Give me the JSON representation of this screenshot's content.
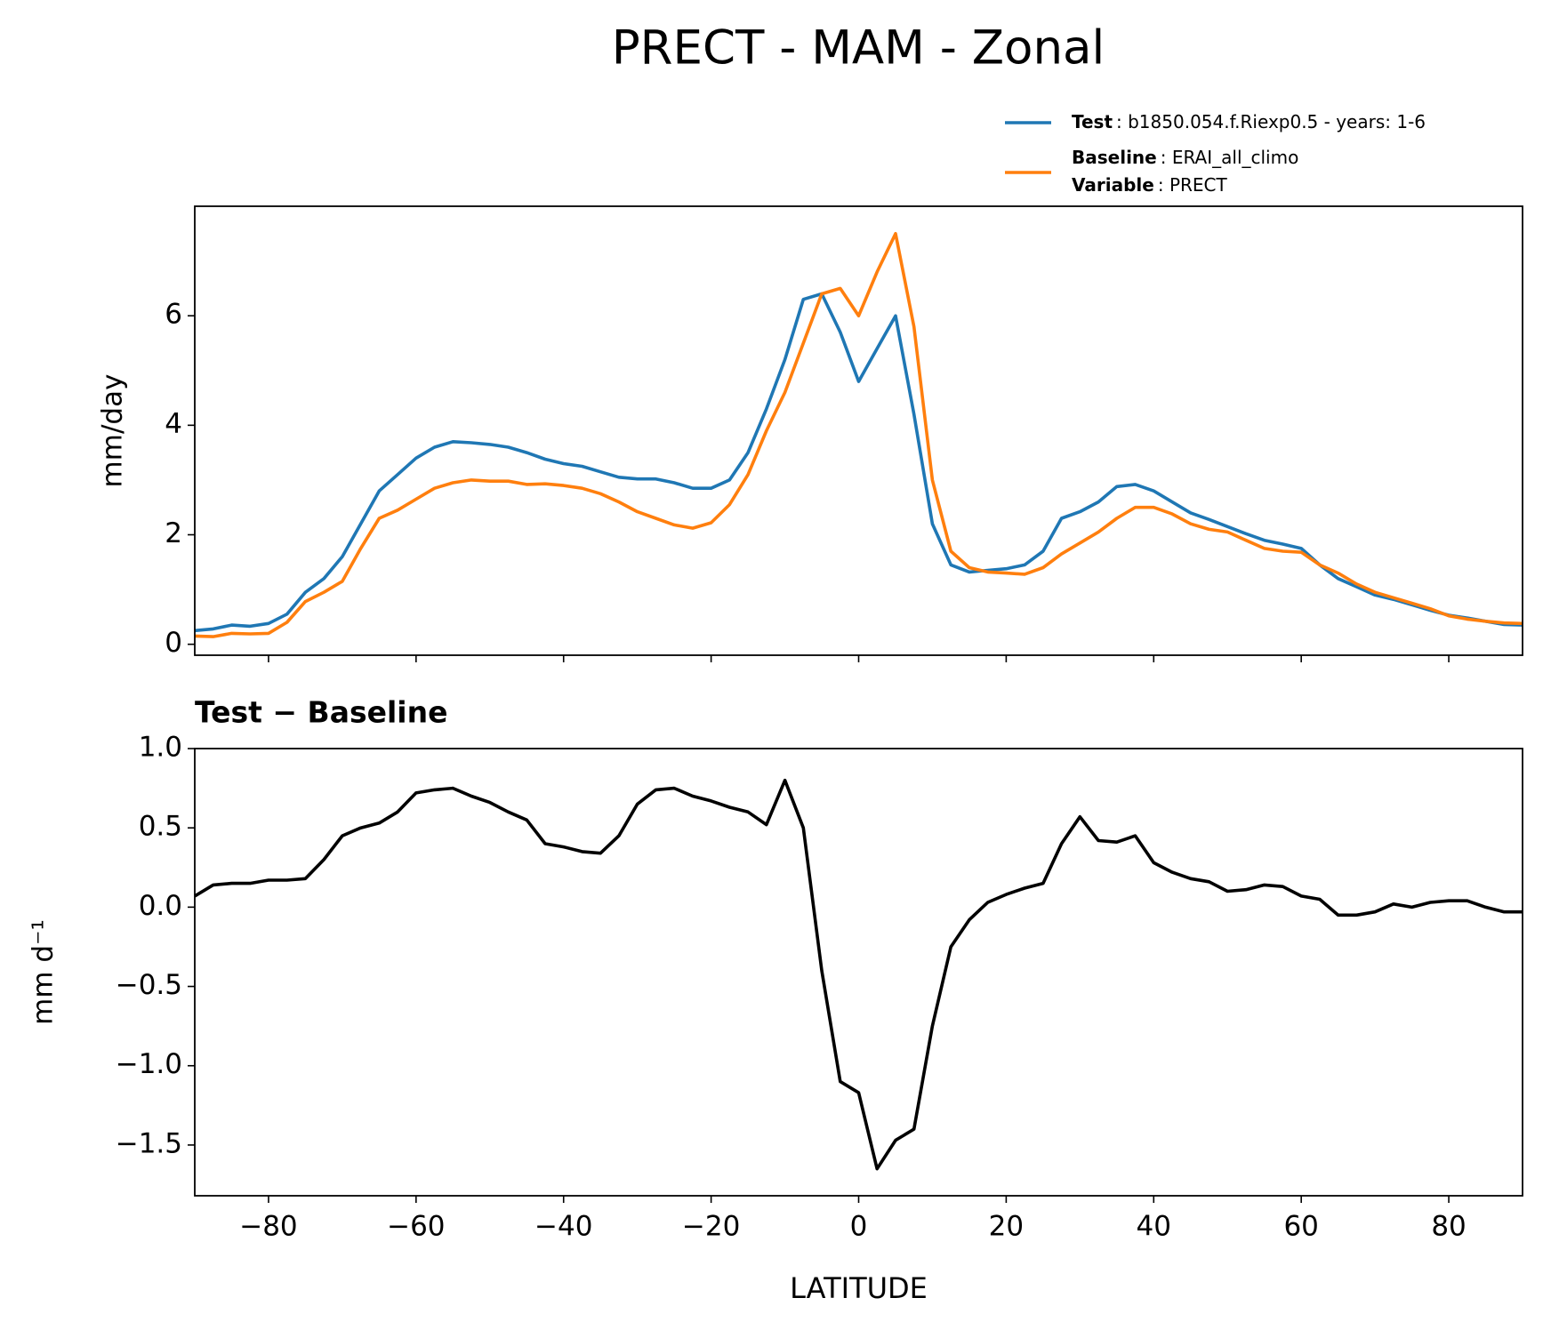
{
  "title": "PRECT - MAM - Zonal",
  "chart_data": [
    {
      "type": "line",
      "ylabel": "mm/day",
      "x": [
        -90,
        -87.5,
        -85,
        -82.5,
        -80,
        -77.5,
        -75,
        -72.5,
        -70,
        -67.5,
        -65,
        -62.5,
        -60,
        -57.5,
        -55,
        -52.5,
        -50,
        -47.5,
        -45,
        -42.5,
        -40,
        -37.5,
        -35,
        -32.5,
        -30,
        -27.5,
        -25,
        -22.5,
        -20,
        -17.5,
        -15,
        -12.5,
        -10,
        -7.5,
        -5,
        -2.5,
        0,
        2.5,
        5,
        7.5,
        10,
        12.5,
        15,
        17.5,
        20,
        22.5,
        25,
        27.5,
        30,
        32.5,
        35,
        37.5,
        40,
        42.5,
        45,
        47.5,
        50,
        52.5,
        55,
        57.5,
        60,
        62.5,
        65,
        67.5,
        70,
        72.5,
        75,
        77.5,
        80,
        82.5,
        85,
        87.5,
        90
      ],
      "series": [
        {
          "name": "Test",
          "label": ": b1850.054.f.Riexp0.5 - years: 1-6",
          "color": "#1f77b4",
          "values": [
            0.25,
            0.28,
            0.35,
            0.33,
            0.38,
            0.55,
            0.95,
            1.2,
            1.6,
            2.2,
            2.8,
            3.1,
            3.4,
            3.6,
            3.7,
            3.68,
            3.65,
            3.6,
            3.5,
            3.38,
            3.3,
            3.25,
            3.15,
            3.05,
            3.02,
            3.02,
            2.95,
            2.85,
            2.85,
            3.0,
            3.5,
            4.3,
            5.2,
            6.3,
            6.4,
            5.7,
            4.8,
            5.4,
            6.0,
            4.2,
            2.2,
            1.45,
            1.32,
            1.35,
            1.38,
            1.45,
            1.7,
            2.3,
            2.42,
            2.6,
            2.88,
            2.92,
            2.8,
            2.6,
            2.4,
            2.28,
            2.15,
            2.02,
            1.9,
            1.83,
            1.75,
            1.45,
            1.2,
            1.05,
            0.9,
            0.82,
            0.72,
            0.62,
            0.53,
            0.48,
            0.42,
            0.36,
            0.35
          ]
        },
        {
          "name": "Baseline",
          "label": ": ERAI_all_climo",
          "color": "#ff7f0e",
          "values": [
            0.15,
            0.14,
            0.2,
            0.19,
            0.2,
            0.4,
            0.78,
            0.95,
            1.15,
            1.75,
            2.3,
            2.45,
            2.65,
            2.85,
            2.95,
            3.0,
            2.98,
            2.98,
            2.92,
            2.93,
            2.9,
            2.85,
            2.75,
            2.6,
            2.42,
            2.3,
            2.18,
            2.12,
            2.22,
            2.55,
            3.1,
            3.9,
            4.6,
            5.5,
            6.4,
            6.5,
            6.0,
            6.8,
            7.5,
            5.8,
            3.0,
            1.7,
            1.4,
            1.32,
            1.3,
            1.28,
            1.4,
            1.65,
            1.85,
            2.05,
            2.3,
            2.5,
            2.5,
            2.38,
            2.2,
            2.1,
            2.05,
            1.9,
            1.75,
            1.7,
            1.68,
            1.45,
            1.3,
            1.1,
            0.95,
            0.85,
            0.75,
            0.65,
            0.52,
            0.46,
            0.42,
            0.39,
            0.38
          ]
        }
      ],
      "legend_extra": {
        "name": "Variable",
        "label": ": PRECT"
      },
      "xlim": [
        -90,
        90
      ],
      "xticks": [
        {
          "value": -80,
          "label": "−80"
        },
        {
          "value": -60,
          "label": "−60"
        },
        {
          "value": -40,
          "label": "−40"
        },
        {
          "value": -20,
          "label": "−20"
        },
        0,
        20,
        40,
        60,
        80
      ],
      "ylim": [
        -0.2,
        8.0
      ],
      "yticks": [
        0,
        2,
        4,
        6
      ]
    },
    {
      "type": "line",
      "title": "Test − Baseline",
      "ylabel": "mm d⁻¹",
      "xlabel": "LATITUDE",
      "x": [
        -90,
        -87.5,
        -85,
        -82.5,
        -80,
        -77.5,
        -75,
        -72.5,
        -70,
        -67.5,
        -65,
        -62.5,
        -60,
        -57.5,
        -55,
        -52.5,
        -50,
        -47.5,
        -45,
        -42.5,
        -40,
        -37.5,
        -35,
        -32.5,
        -30,
        -27.5,
        -25,
        -22.5,
        -20,
        -17.5,
        -15,
        -12.5,
        -10,
        -7.5,
        -5,
        -2.5,
        0,
        2.5,
        5,
        7.5,
        10,
        12.5,
        15,
        17.5,
        20,
        22.5,
        25,
        27.5,
        30,
        32.5,
        35,
        37.5,
        40,
        42.5,
        45,
        47.5,
        50,
        52.5,
        55,
        57.5,
        60,
        62.5,
        65,
        67.5,
        70,
        72.5,
        75,
        77.5,
        80,
        82.5,
        85,
        87.5,
        90
      ],
      "series": [
        {
          "color": "#000000",
          "values": [
            0.07,
            0.14,
            0.15,
            0.15,
            0.17,
            0.17,
            0.18,
            0.3,
            0.45,
            0.5,
            0.53,
            0.6,
            0.72,
            0.74,
            0.75,
            0.7,
            0.66,
            0.6,
            0.55,
            0.4,
            0.38,
            0.35,
            0.34,
            0.45,
            0.65,
            0.74,
            0.75,
            0.7,
            0.67,
            0.63,
            0.6,
            0.52,
            0.8,
            0.5,
            -0.4,
            -1.1,
            -1.17,
            -1.65,
            -1.47,
            -1.4,
            -0.75,
            -0.25,
            -0.08,
            0.03,
            0.08,
            0.12,
            0.15,
            0.4,
            0.57,
            0.42,
            0.41,
            0.45,
            0.28,
            0.22,
            0.18,
            0.16,
            0.1,
            0.11,
            0.14,
            0.13,
            0.07,
            0.05,
            -0.05,
            -0.05,
            -0.03,
            0.02,
            0.0,
            0.03,
            0.04,
            0.04,
            0.0,
            -0.03,
            -0.03
          ]
        }
      ],
      "xlim": [
        -90,
        90
      ],
      "xticks": [
        {
          "value": -80,
          "label": "−80"
        },
        {
          "value": -60,
          "label": "−60"
        },
        {
          "value": -40,
          "label": "−40"
        },
        {
          "value": -20,
          "label": "−20"
        },
        0,
        20,
        40,
        60,
        80
      ],
      "ylim": [
        -1.82,
        1.0
      ],
      "yticks": [
        {
          "value": -1.5,
          "label": "−1.5"
        },
        {
          "value": -1.0,
          "label": "−1.0"
        },
        {
          "value": -0.5,
          "label": "−0.5"
        },
        {
          "value": 0,
          "label": "0.0"
        },
        0.5,
        {
          "value": 1.0,
          "label": "1.0"
        }
      ]
    }
  ]
}
